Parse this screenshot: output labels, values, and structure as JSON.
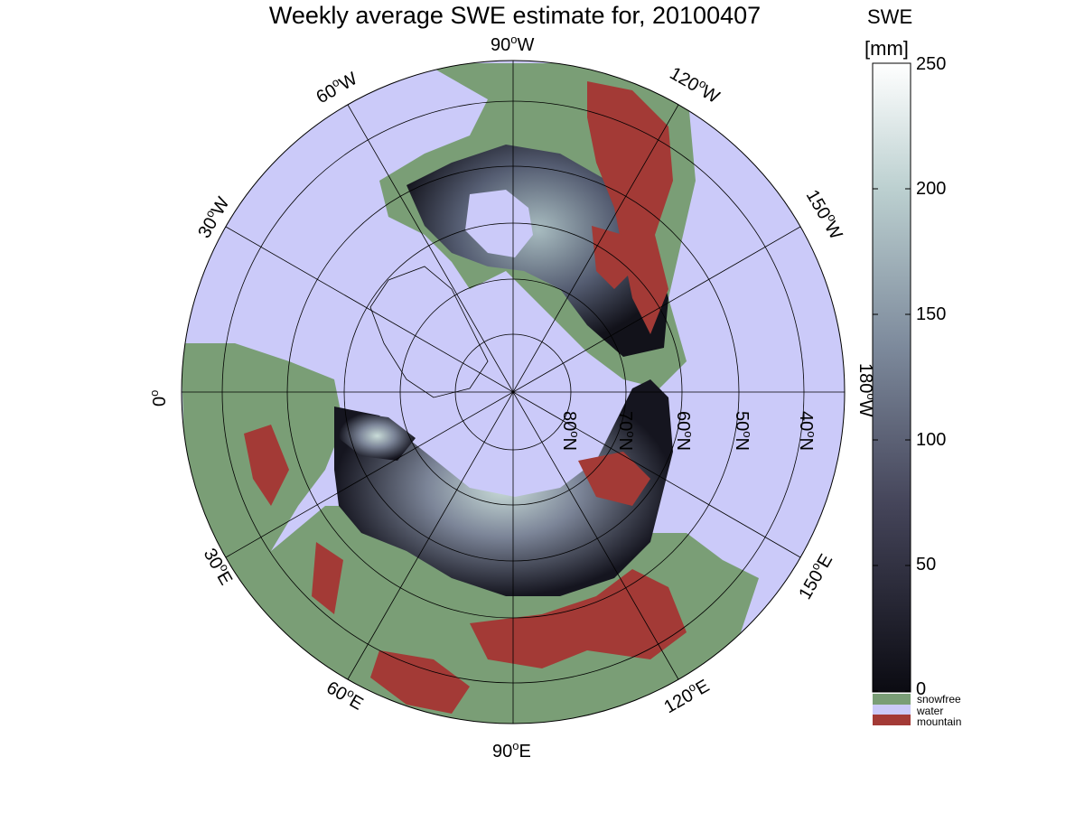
{
  "title": "Weekly average SWE estimate for, 20100407",
  "colorbar": {
    "label_line1": "SWE",
    "label_line2": "[mm]",
    "ticks": [
      "0",
      "50",
      "100",
      "150",
      "200",
      "250"
    ],
    "range": [
      0,
      250
    ],
    "gradient_low": "#0b0b12",
    "gradient_mid": "#6e7c92",
    "gradient_high": "#ffffff"
  },
  "legend": [
    {
      "label": "snowfree",
      "color": "#7a9e76"
    },
    {
      "label": "water",
      "color": "#cbcaf9"
    },
    {
      "label": "mountain",
      "color": "#a33a36"
    }
  ],
  "map": {
    "projection": "north-polar-stereographic",
    "water_color": "#cbcaf9",
    "land_color": "#7a9e76",
    "mountain_color": "#a33a36",
    "longitude_labels": {
      "lon_90w": "90",
      "lon_60w": "60",
      "lon_120w": "120",
      "lon_30w": "30",
      "lon_150w": "150",
      "lon_0": "0",
      "lon_180w": "180",
      "lon_30e": "30",
      "lon_150e": "150",
      "lon_60e": "60",
      "lon_120e": "120",
      "lon_90e": "90"
    },
    "longitude_suffix": {
      "w": "W",
      "e": "E"
    },
    "degree_symbol": "o",
    "latitude_labels": [
      "80",
      "70",
      "60",
      "50",
      "40"
    ],
    "latitude_suffix": "N"
  }
}
